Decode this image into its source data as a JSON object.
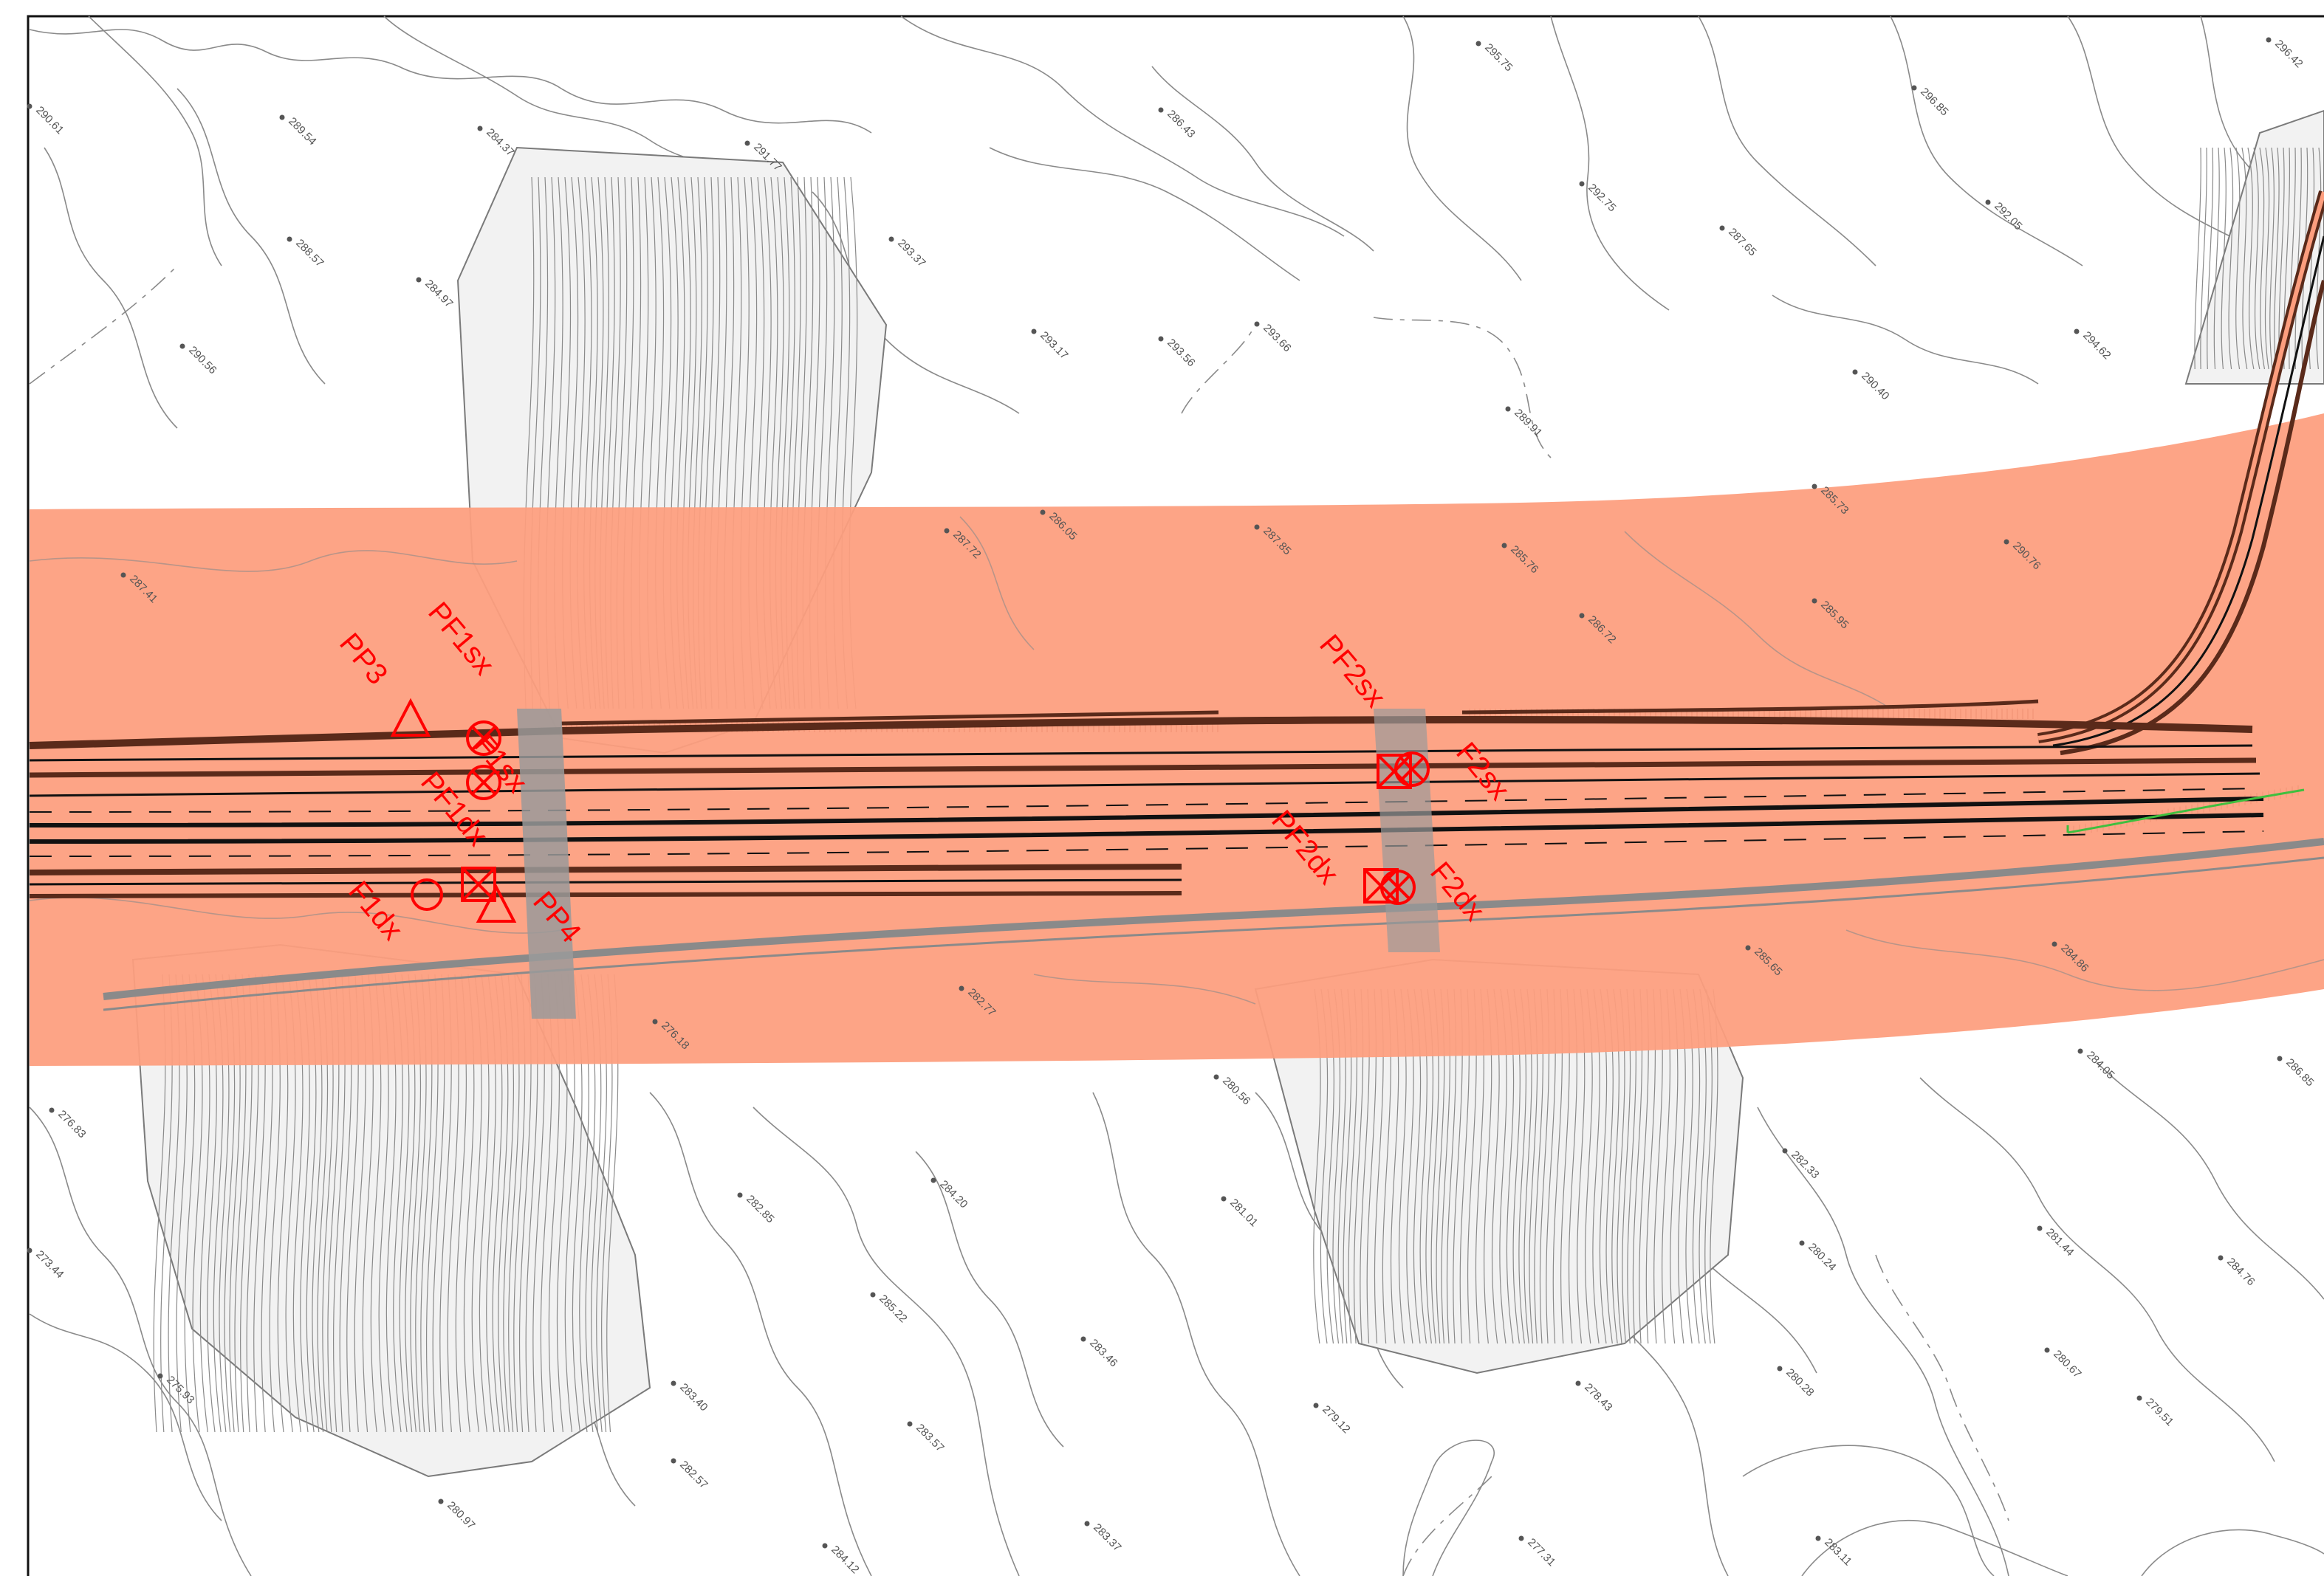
{
  "map": {
    "colors": {
      "corridor": "#fd9e7e",
      "marker": "#ff0000",
      "contour": "#8a8a8a",
      "road_edge": "#5a2a1a",
      "road_line": "#111111",
      "label": "#555555",
      "green_edge": "#3fbf3f"
    },
    "markers": [
      {
        "id": "PP3",
        "text": "PP3",
        "symbol": "triangle"
      },
      {
        "id": "PF1sx",
        "text": "PF1sx",
        "symbol": "circle-cross"
      },
      {
        "id": "F1sx",
        "text": "F1sx",
        "symbol": "circle-cross"
      },
      {
        "id": "PF1dx",
        "text": "PF1dx",
        "symbol": "square-cross"
      },
      {
        "id": "F1dx",
        "text": "F1dx",
        "symbol": "circle"
      },
      {
        "id": "PP4",
        "text": "PP4",
        "symbol": "triangle"
      },
      {
        "id": "PF2sx",
        "text": "PF2sx",
        "symbol": "square-cross"
      },
      {
        "id": "F2sx",
        "text": "F2sx",
        "symbol": "circle-cross"
      },
      {
        "id": "PF2dx",
        "text": "PF2dx",
        "symbol": "square-cross"
      },
      {
        "id": "F2dx",
        "text": "F2dx",
        "symbol": "circle-cross"
      }
    ],
    "elevations": [
      "290.61",
      "289.54",
      "284.37",
      "291.77",
      "286.43",
      "295.75",
      "296.85",
      "296.42",
      "288.57",
      "284.97",
      "293.37",
      "293.17",
      "293.56",
      "293.66",
      "292.75",
      "287.65",
      "292.05",
      "290.56",
      "289.91",
      "290.40",
      "294.62",
      "287.72",
      "286.05",
      "287.85",
      "285.76",
      "286.72",
      "285.73",
      "290.76",
      "287.41",
      "285.95",
      "282.77",
      "285.65",
      "284.86",
      "276.18",
      "280.56",
      "284.05",
      "286.85",
      "276.83",
      "282.33",
      "273.44",
      "282.85",
      "284.20",
      "281.01",
      "280.24",
      "281.44",
      "284.76",
      "285.22",
      "283.46",
      "280.67",
      "275.93",
      "283.40",
      "283.57",
      "279.12",
      "278.43",
      "280.28",
      "279.51",
      "282.57",
      "283.37",
      "277.31",
      "283.11",
      "280.97",
      "284.12"
    ]
  }
}
